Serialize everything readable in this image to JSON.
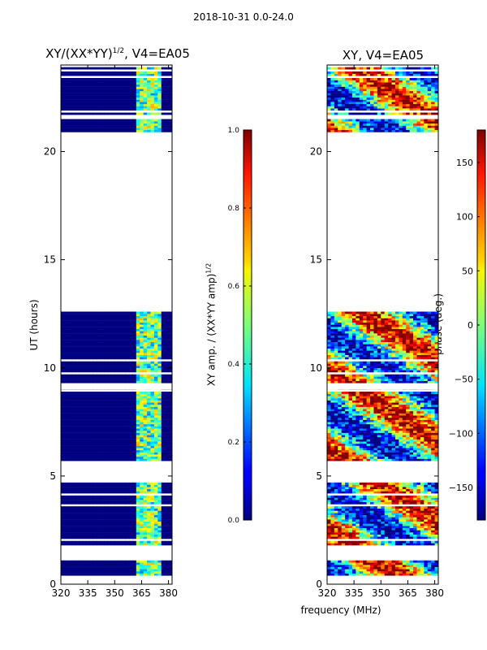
{
  "figure_title": "2018-10-31 0.0-24.0",
  "chart_data": [
    {
      "type": "heatmap",
      "title": "XY/(XX*YY)^{1/2}, V4=EA05",
      "title_main": "XY/(XX*YY)",
      "title_sup": "1/2",
      "title_tail": ", V4=EA05",
      "xlabel": "",
      "ylabel": "UT (hours)",
      "xlim": [
        320,
        382
      ],
      "ylim": [
        0,
        24
      ],
      "xticks": [
        320,
        335,
        350,
        365,
        380
      ],
      "yticks": [
        0,
        5,
        10,
        15,
        20
      ],
      "colorbar": {
        "label": "XY amp. / (XX*YY amp)^{1/2}",
        "label_main": "XY amp. / (XX*YY amp)",
        "label_sup": "1/2",
        "range": [
          0.0,
          1.0
        ],
        "ticks": [
          "0.0",
          "0.2",
          "0.4",
          "0.6",
          "0.8",
          "1.0"
        ],
        "colormap": "jet"
      },
      "data_ranges_ut_hours": [
        [
          0.4,
          1.2
        ],
        [
          1.8,
          4.7
        ],
        [
          5.7,
          9.0
        ],
        [
          9.3,
          12.6
        ],
        [
          20.9,
          23.9
        ]
      ],
      "high_amplitude_freq_range_mhz": [
        361,
        377
      ]
    },
    {
      "type": "heatmap",
      "title": "XY, V4=EA05",
      "xlabel": "frequency (MHz)",
      "ylabel": "",
      "xlim": [
        320,
        382
      ],
      "ylim": [
        0,
        24
      ],
      "xticks": [
        320,
        335,
        350,
        365,
        380
      ],
      "yticks": [
        0,
        5,
        10,
        15,
        20
      ],
      "colorbar": {
        "label": "phase (deg.)",
        "range": [
          -180,
          180
        ],
        "ticks": [
          "−150",
          "−100",
          "−50",
          "0",
          "50",
          "100",
          "150"
        ],
        "tick_values": [
          -150,
          -100,
          -50,
          0,
          50,
          100,
          150
        ],
        "colormap": "jet"
      },
      "data_ranges_ut_hours": [
        [
          0.4,
          1.2
        ],
        [
          1.8,
          4.7
        ],
        [
          5.7,
          9.0
        ],
        [
          9.3,
          12.6
        ],
        [
          20.9,
          23.9
        ]
      ]
    }
  ]
}
